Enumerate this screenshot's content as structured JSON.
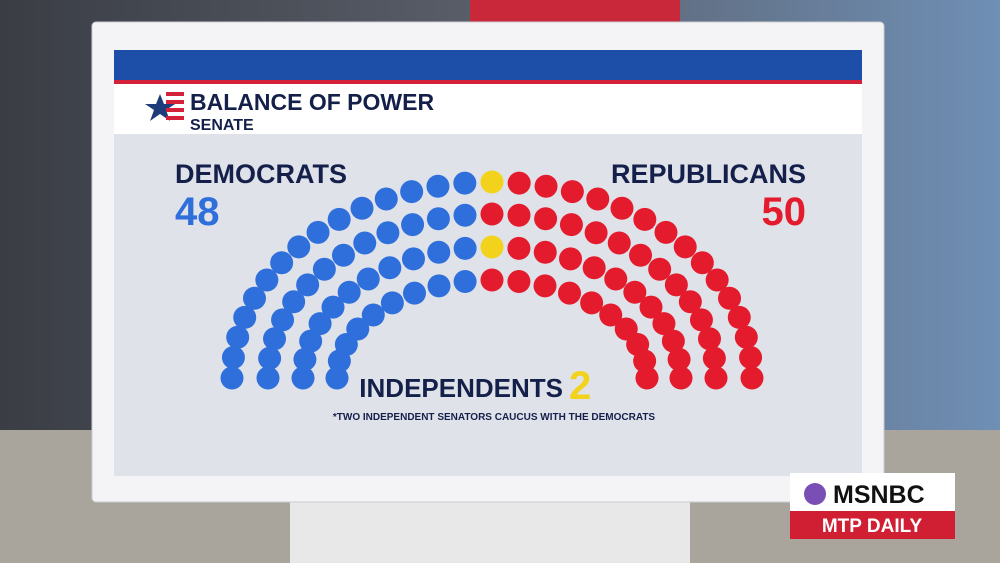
{
  "chart_data": {
    "type": "parliament",
    "title": "BALANCE OF POWER",
    "subtitle": "SENATE",
    "note": "*TWO INDEPENDENT SENATORS CAUCUS WITH THE DEMOCRATS",
    "series": [
      {
        "name": "DEMOCRATS",
        "color": "#2f6fdc",
        "values": [
          48
        ]
      },
      {
        "name": "INDEPENDENTS",
        "color": "#f2d21b",
        "values": [
          2
        ]
      },
      {
        "name": "REPUBLICANS",
        "color": "#e41b2c",
        "values": [
          50
        ]
      }
    ]
  },
  "network": {
    "logo": "MSNBC",
    "show": "MTP DAILY"
  }
}
